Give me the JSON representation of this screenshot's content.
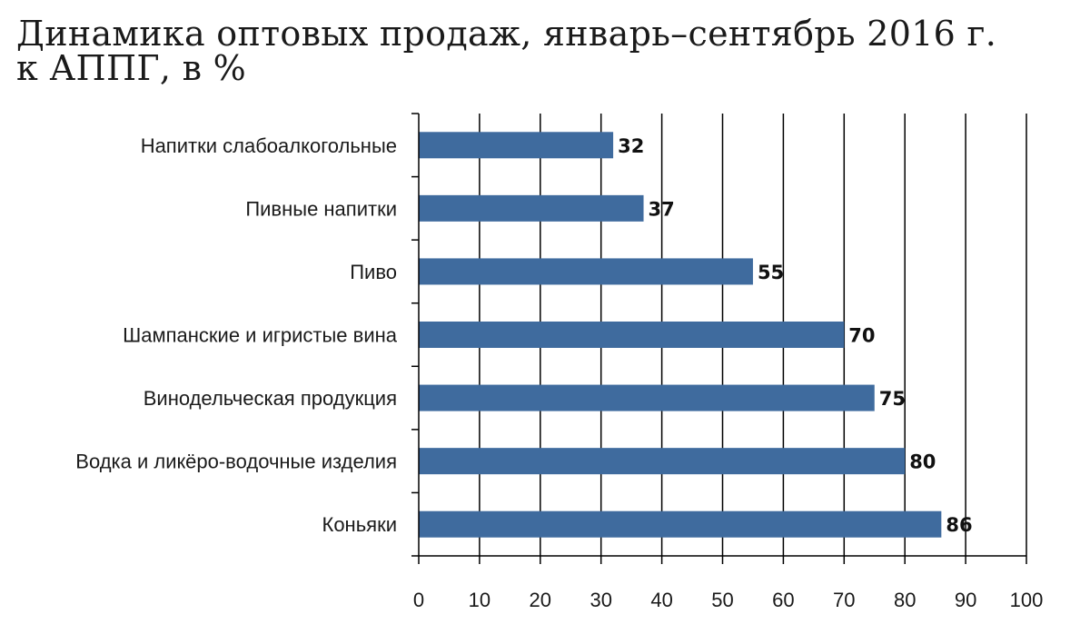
{
  "title_lines": [
    "Динамика оптовых продаж, январь–сентябрь 2016 г.",
    "к АППГ, в %"
  ],
  "chart_data": {
    "type": "bar",
    "orientation": "horizontal",
    "categories": [
      "Напитки слабоалкогольные",
      "Пивные напитки",
      "Пиво",
      "Шампанские и игристые вина",
      "Винодельческая продукция",
      "Водка и ликёро-водочные изделия",
      "Коньяки"
    ],
    "values": [
      32,
      37,
      55,
      70,
      75,
      80,
      86
    ],
    "value_labels": [
      "32",
      "37",
      "55",
      "70",
      "75",
      "80",
      "86"
    ],
    "xlim": [
      0,
      100
    ],
    "x_ticks": [
      0,
      10,
      20,
      30,
      40,
      50,
      60,
      70,
      80,
      90,
      100
    ],
    "x_tick_labels": [
      "0",
      "10",
      "20",
      "30",
      "40",
      "50",
      "60",
      "70",
      "80",
      "90",
      "100"
    ],
    "grid": "vertical",
    "bar_color": "#3f6b9e",
    "grid_color": "#000000",
    "xlabel": "",
    "ylabel": ""
  }
}
